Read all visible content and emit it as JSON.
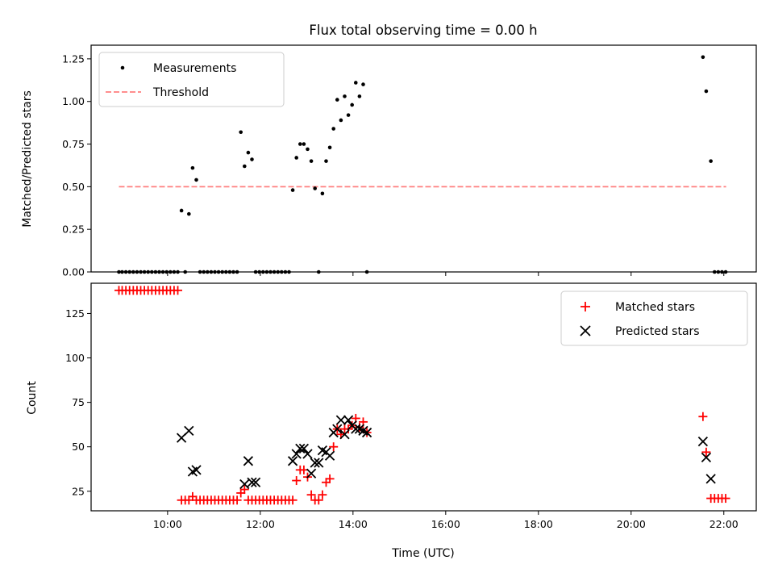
{
  "chart_data": [
    {
      "type": "scatter",
      "title": "Flux total observing time = 0.00 h",
      "ylabel": "Matched/Predicted stars",
      "xlim_hours": [
        8.35,
        22.7
      ],
      "ylim": [
        0,
        1.33
      ],
      "yticks": [
        "0.00",
        "0.25",
        "0.50",
        "0.75",
        "1.00",
        "1.25"
      ],
      "ytick_values": [
        0,
        0.25,
        0.5,
        0.75,
        1.0,
        1.25
      ],
      "legend": {
        "position": "top-left",
        "items": [
          "Measurements",
          "Threshold"
        ]
      },
      "threshold": {
        "name": "Threshold",
        "value": 0.5,
        "x_range_hours": [
          8.95,
          22.05
        ],
        "color": "#ff7f7f"
      },
      "series": [
        {
          "name": "Measurements",
          "color": "#000000",
          "x_hours": [
            8.95,
            9.02,
            9.1,
            9.18,
            9.26,
            9.34,
            9.42,
            9.5,
            9.58,
            9.66,
            9.74,
            9.82,
            9.9,
            9.98,
            10.06,
            10.14,
            10.22,
            10.3,
            10.38,
            10.46,
            10.54,
            10.62,
            10.7,
            10.78,
            10.86,
            10.94,
            11.02,
            11.1,
            11.18,
            11.26,
            11.34,
            11.42,
            11.5,
            11.58,
            11.66,
            11.74,
            11.82,
            11.9,
            11.98,
            12.06,
            12.14,
            12.22,
            12.3,
            12.38,
            12.46,
            12.54,
            12.62,
            12.7,
            12.78,
            12.86,
            12.94,
            13.02,
            13.1,
            13.18,
            13.26,
            13.34,
            13.42,
            13.5,
            13.58,
            13.66,
            13.74,
            13.82,
            13.9,
            13.98,
            14.06,
            14.14,
            14.22,
            14.3,
            21.55,
            21.62,
            21.72,
            21.8,
            21.88,
            21.96,
            22.04
          ],
          "y": [
            0,
            0,
            0,
            0,
            0,
            0,
            0,
            0,
            0,
            0,
            0,
            0,
            0,
            0,
            0,
            0,
            0,
            0.36,
            0,
            0.34,
            0.61,
            0.54,
            0,
            0,
            0,
            0,
            0,
            0,
            0,
            0,
            0,
            0,
            0,
            0.82,
            0.62,
            0.7,
            0.66,
            0,
            0,
            0,
            0,
            0,
            0,
            0,
            0,
            0,
            0,
            0.48,
            0.67,
            0.75,
            0.75,
            0.72,
            0.65,
            0.49,
            0,
            0.46,
            0.65,
            0.73,
            0.84,
            1.01,
            0.89,
            1.03,
            0.92,
            0.98,
            1.11,
            1.03,
            1.1,
            0,
            1.26,
            1.06,
            0.65,
            0,
            0,
            0,
            0
          ]
        }
      ]
    },
    {
      "type": "scatter",
      "ylabel": "Count",
      "xlabel": "Time (UTC)",
      "xlim_hours": [
        8.35,
        22.7
      ],
      "ylim": [
        14,
        142
      ],
      "yticks": [
        "25",
        "50",
        "75",
        "100",
        "125"
      ],
      "ytick_values": [
        25,
        50,
        75,
        100,
        125
      ],
      "xticks": [
        "10:00",
        "12:00",
        "14:00",
        "16:00",
        "18:00",
        "20:00",
        "22:00"
      ],
      "xtick_values_hours": [
        10,
        12,
        14,
        16,
        18,
        20,
        22
      ],
      "legend": {
        "position": "top-right",
        "items": [
          "Matched stars",
          "Predicted stars"
        ]
      },
      "series": [
        {
          "name": "Matched stars",
          "marker": "plus",
          "color": "#ff0000",
          "x_hours": [
            8.95,
            9.02,
            9.1,
            9.18,
            9.26,
            9.34,
            9.42,
            9.5,
            9.58,
            9.66,
            9.74,
            9.82,
            9.9,
            9.98,
            10.06,
            10.14,
            10.22,
            10.3,
            10.38,
            10.46,
            10.54,
            10.62,
            10.7,
            10.78,
            10.86,
            10.94,
            11.02,
            11.1,
            11.18,
            11.26,
            11.34,
            11.42,
            11.5,
            11.58,
            11.66,
            11.74,
            11.82,
            11.9,
            11.98,
            12.06,
            12.14,
            12.22,
            12.3,
            12.38,
            12.46,
            12.54,
            12.62,
            12.7,
            12.78,
            12.86,
            12.94,
            13.02,
            13.1,
            13.18,
            13.26,
            13.34,
            13.42,
            13.5,
            13.58,
            13.66,
            13.74,
            13.82,
            13.9,
            13.98,
            14.06,
            14.14,
            14.22,
            14.3,
            21.55,
            21.62,
            21.72,
            21.8,
            21.88,
            21.96,
            22.04
          ],
          "y": [
            138,
            138,
            138,
            138,
            138,
            138,
            138,
            138,
            138,
            138,
            138,
            138,
            138,
            138,
            138,
            138,
            138,
            20,
            20,
            20,
            22,
            20,
            20,
            20,
            20,
            20,
            20,
            20,
            20,
            20,
            20,
            20,
            20,
            24,
            26,
            20,
            20,
            20,
            20,
            20,
            20,
            20,
            20,
            20,
            20,
            20,
            20,
            20,
            31,
            37,
            37,
            33,
            23,
            20,
            20,
            23,
            30,
            32,
            50,
            60,
            57,
            60,
            60,
            62,
            66,
            61,
            64,
            58,
            67,
            47,
            21,
            21,
            21,
            21,
            21
          ]
        },
        {
          "name": "Predicted stars",
          "marker": "x",
          "color": "#000000",
          "x_hours": [
            10.3,
            10.46,
            10.54,
            10.62,
            11.66,
            11.74,
            11.82,
            11.9,
            12.7,
            12.78,
            12.86,
            12.94,
            13.02,
            13.1,
            13.18,
            13.26,
            13.34,
            13.42,
            13.5,
            13.58,
            13.66,
            13.74,
            13.82,
            13.9,
            13.98,
            14.06,
            14.14,
            14.22,
            14.3,
            21.55,
            21.62,
            21.72
          ],
          "y": [
            55,
            59,
            36,
            37,
            29,
            42,
            30,
            30,
            42,
            46,
            49,
            49,
            46,
            35,
            41,
            41,
            48,
            47,
            45,
            58,
            60,
            65,
            57,
            65,
            62,
            60,
            60,
            59,
            58,
            53,
            44,
            32
          ]
        }
      ]
    }
  ]
}
